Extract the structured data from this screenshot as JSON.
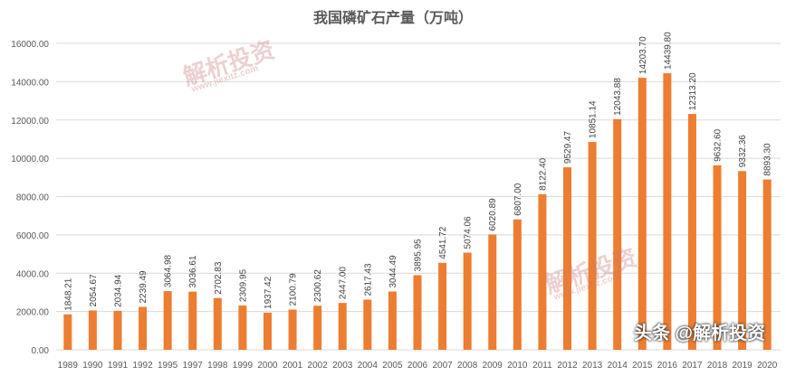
{
  "chart_data": {
    "type": "bar",
    "title": "我国磷矿石产量（万吨）",
    "xlabel": "",
    "ylabel": "",
    "ylim": [
      0,
      16000
    ],
    "yticks": [
      "0.00",
      "2000.00",
      "4000.00",
      "6000.00",
      "8000.00",
      "10000.00",
      "12000.00",
      "14000.00",
      "16000.00"
    ],
    "grid": true,
    "bar_color": "#ED7D31",
    "categories": [
      "1989",
      "1990",
      "1991",
      "1992",
      "1995",
      "1997",
      "1998",
      "1999",
      "2000",
      "2001",
      "2002",
      "2003",
      "2004",
      "2005",
      "2006",
      "2007",
      "2008",
      "2009",
      "2010",
      "2011",
      "2012",
      "2013",
      "2014",
      "2015",
      "2016",
      "2017",
      "2018",
      "2019",
      "2020"
    ],
    "values": [
      1848.21,
      2054.67,
      2034.94,
      2239.49,
      3064.98,
      3036.61,
      2702.83,
      2309.95,
      1937.42,
      2100.79,
      2300.62,
      2447.0,
      2617.43,
      3044.49,
      3895.95,
      4541.72,
      5074.06,
      6020.89,
      6807.0,
      8122.4,
      9529.47,
      10851.14,
      12043.88,
      14203.7,
      14439.8,
      12313.2,
      9632.6,
      9332.36,
      8893.3
    ],
    "labels": [
      "1848.21",
      "2054.67",
      "2034.94",
      "2239.49",
      "3064.98",
      "3036.61",
      "2702.83",
      "2309.95",
      "1937.42",
      "2100.79",
      "2300.62",
      "2447.00",
      "2617.43",
      "3044.49",
      "3895.95",
      "4541.72",
      "5074.06",
      "6020.89",
      "6807.00",
      "8122.40",
      "9529.47",
      "10851.14",
      "12043.88",
      "14203.70",
      "14439.80",
      "12313.20",
      "9632.60",
      "9332.36",
      "8893.30"
    ]
  },
  "watermarks": {
    "brand": "解析投资",
    "url": "www.jiexitz.com",
    "footer": "头条 @解析投资"
  }
}
